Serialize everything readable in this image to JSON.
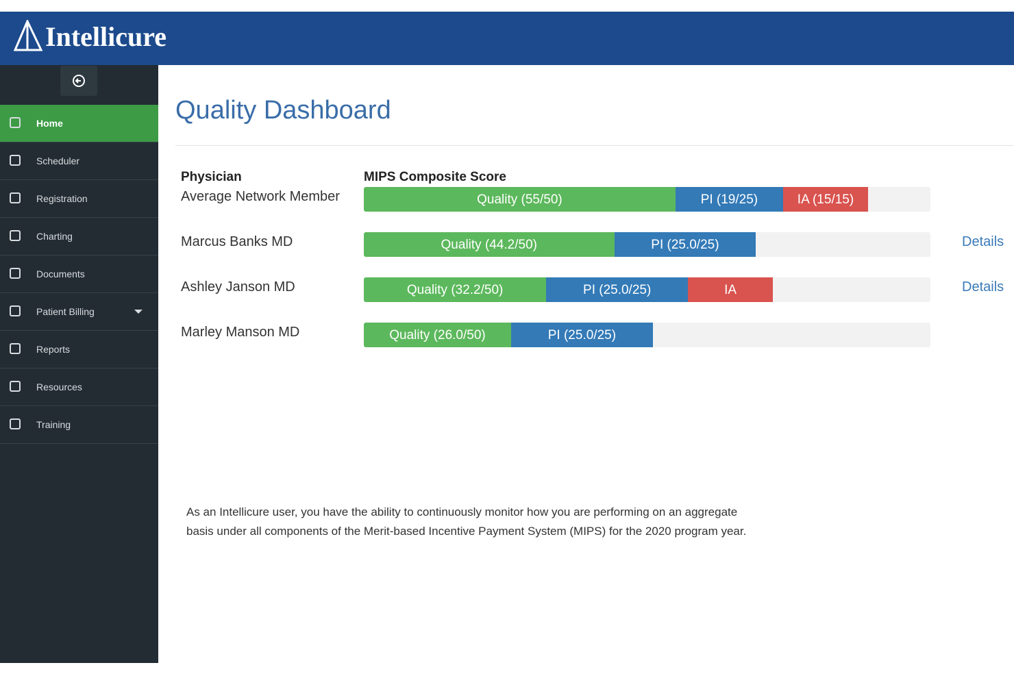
{
  "header": {
    "brand": "Intellicure"
  },
  "nav": [
    "Home",
    "Scheduler",
    "Registration",
    "Charting",
    "Documents",
    "Patient Billing",
    "Reports",
    "Resources",
    "Training"
  ],
  "title": "Quality Dashboard",
  "columns": {
    "physician": "Physician",
    "score": "MIPS Composite Score"
  },
  "chart_data": {
    "type": "stacked-bar",
    "xlim": [
      0,
      100
    ],
    "rows": [
      {
        "name": "Average Network Member",
        "segments": [
          {
            "label": "Quality (55/50)",
            "value": 55,
            "color": "#5cb85c"
          },
          {
            "label": "PI (19/25)",
            "value": 19,
            "color": "#337ab7"
          },
          {
            "label": "IA (15/15)",
            "value": 15,
            "color": "#d9534f"
          }
        ]
      },
      {
        "name": "Marcus Banks MD",
        "details": "Details",
        "segments": [
          {
            "label": "Quality (44.2/50)",
            "value": 44.2,
            "color": "#5cb85c"
          },
          {
            "label": "PI (25.0/25)",
            "value": 25,
            "color": "#337ab7"
          }
        ]
      },
      {
        "name": "Ashley Janson MD",
        "details": "Details",
        "segments": [
          {
            "label": "Quality (32.2/50)",
            "value": 32.2,
            "color": "#5cb85c"
          },
          {
            "label": "PI (25.0/25)",
            "value": 25,
            "color": "#337ab7"
          },
          {
            "label": "IA",
            "value": 15,
            "color": "#d9534f"
          }
        ]
      },
      {
        "name": "Marley  Manson MD",
        "segments": [
          {
            "label": "Quality (26.0/50)",
            "value": 26,
            "color": "#5cb85c"
          },
          {
            "label": "PI (25.0/25)",
            "value": 25,
            "color": "#337ab7"
          }
        ]
      }
    ]
  },
  "note": "As an Intellicure user, you have the ability to continuously monitor how you are performing on an aggregate basis under all components of the Merit-based Incentive Payment System (MIPS) for the 2020 program year."
}
